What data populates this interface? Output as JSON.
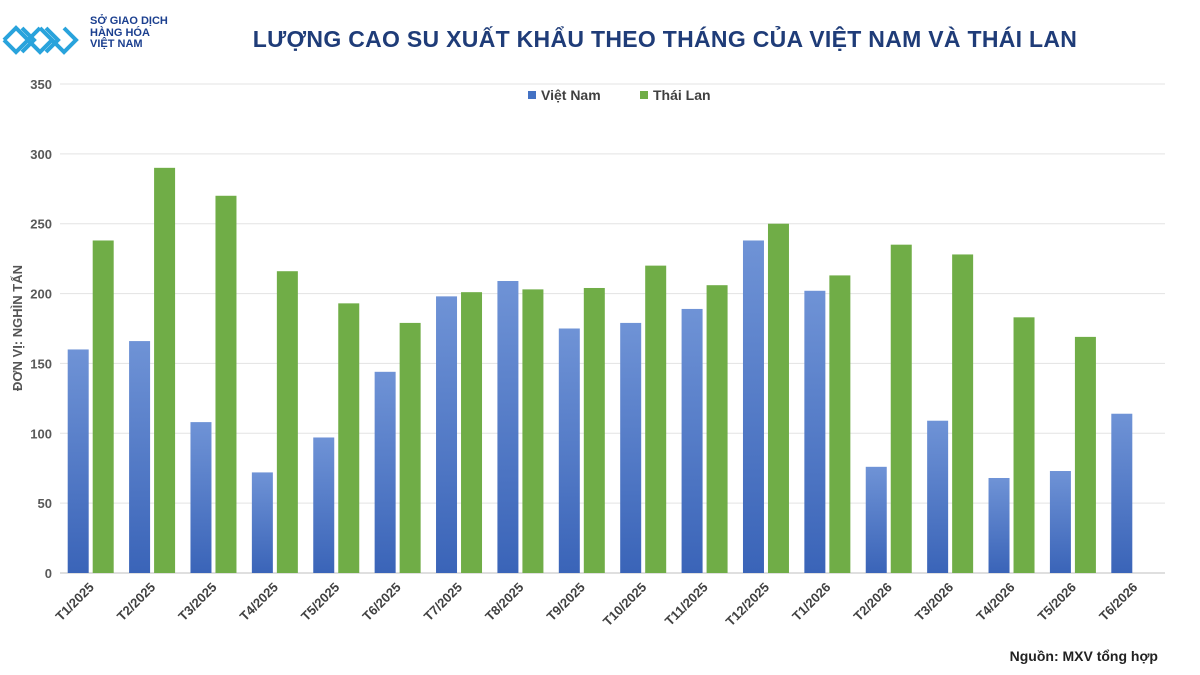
{
  "logo": {
    "lines": [
      "SỞ GIAO DỊCH",
      "HÀNG HÓA",
      "VIỆT NAM"
    ]
  },
  "source": "Nguồn: MXV tổng hợp",
  "colors": {
    "vietnam": "#4472C4",
    "thailand": "#70AD47",
    "title": "#1f3c78"
  },
  "chart_data": {
    "type": "bar",
    "title": "LƯỢNG CAO SU XUẤT KHẨU THEO THÁNG CỦA VIỆT NAM VÀ THÁI LAN",
    "xlabel": "",
    "ylabel": "ĐƠN VỊ: NGHÌN TẤN",
    "ylim": [
      0,
      350
    ],
    "yticks": [
      0,
      50,
      100,
      150,
      200,
      250,
      300,
      350
    ],
    "grid": true,
    "legend": "top-center",
    "categories": [
      "T1/2025",
      "T2/2025",
      "T3/2025",
      "T4/2025",
      "T5/2025",
      "T6/2025",
      "T7/2025",
      "T8/2025",
      "T9/2025",
      "T10/2025",
      "T11/2025",
      "T12/2025",
      "T1/2026",
      "T2/2026",
      "T3/2026",
      "T4/2026",
      "T5/2026",
      "T6/2026"
    ],
    "series": [
      {
        "name": "Việt Nam",
        "values": [
          160,
          166,
          108,
          72,
          97,
          144,
          198,
          209,
          175,
          179,
          189,
          238,
          202,
          76,
          109,
          68,
          73,
          114
        ]
      },
      {
        "name": "Thái Lan",
        "values": [
          238,
          290,
          270,
          216,
          193,
          179,
          201,
          203,
          204,
          220,
          206,
          250,
          213,
          235,
          228,
          183,
          169,
          null
        ]
      }
    ]
  }
}
